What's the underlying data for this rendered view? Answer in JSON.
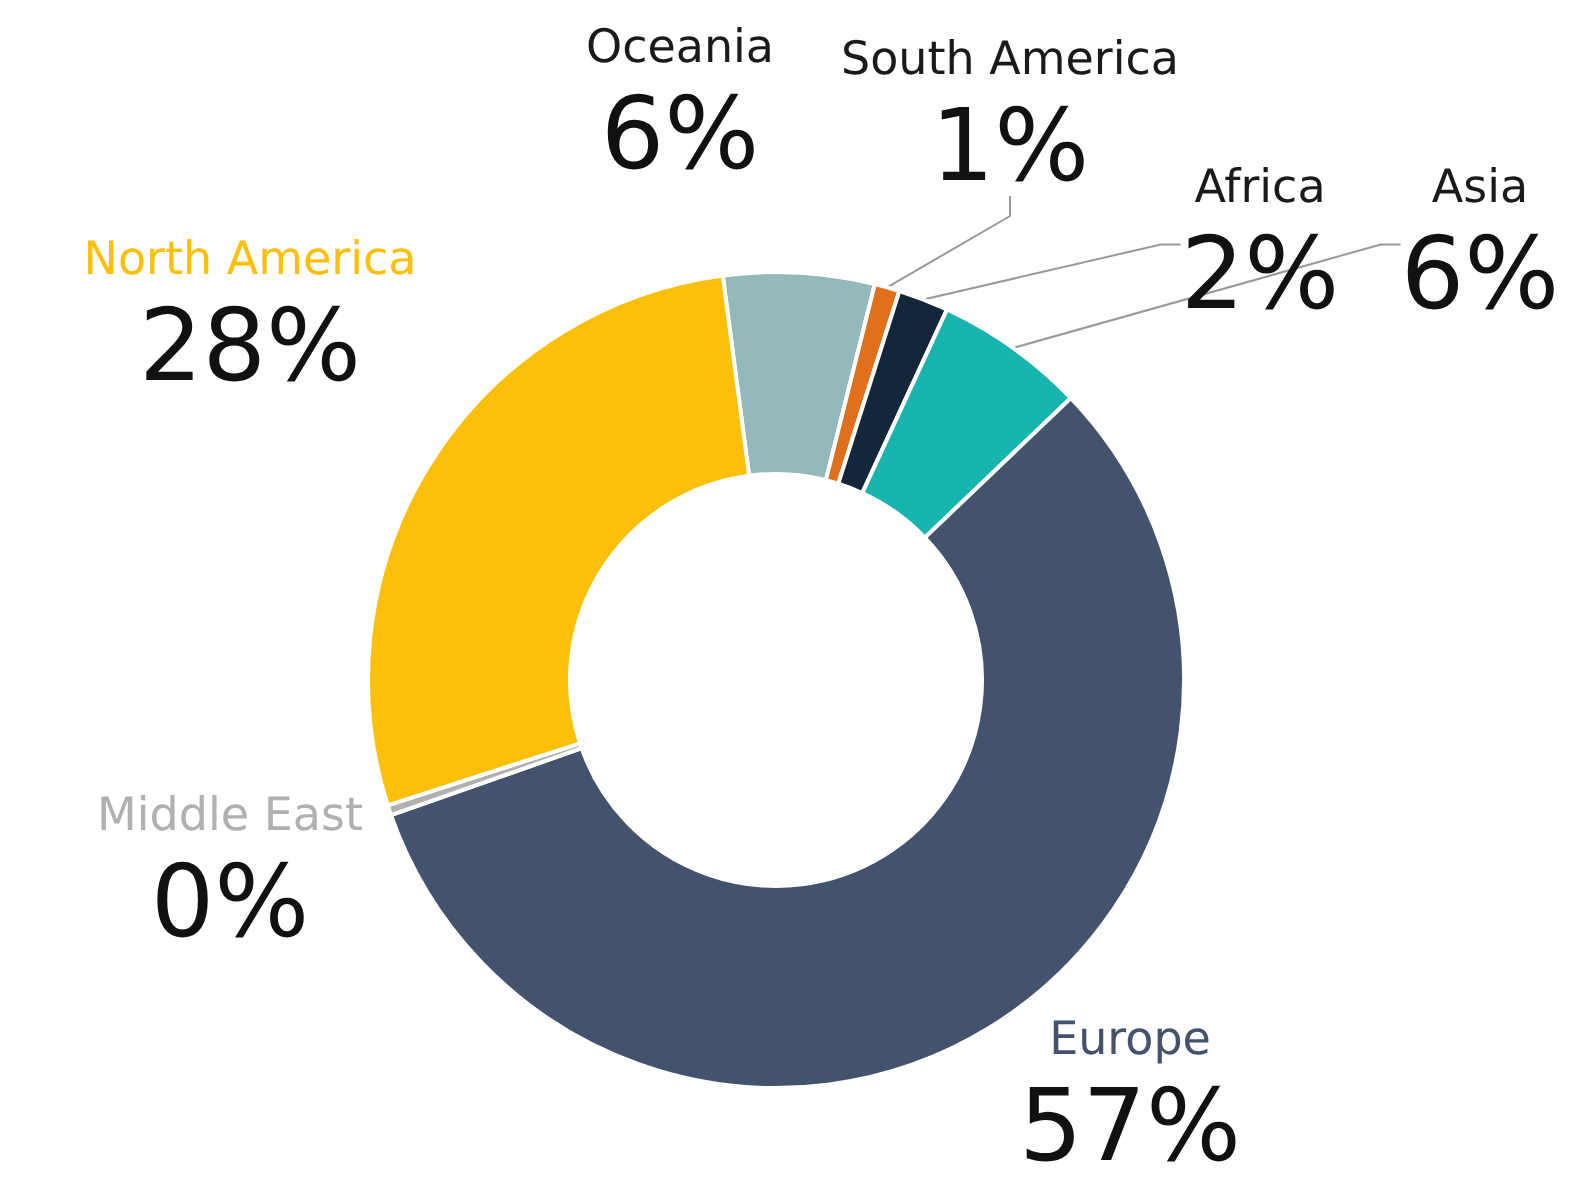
{
  "chart_data": {
    "type": "donut",
    "categories": [
      "Oceania",
      "South America",
      "Africa",
      "Asia",
      "Europe",
      "Middle East",
      "North America"
    ],
    "values": [
      6,
      1,
      2,
      6,
      57,
      0.4,
      28
    ],
    "value_labels": [
      "6%",
      "1%",
      "2%",
      "6%",
      "57%",
      "0%",
      "28%"
    ],
    "colors": [
      "#93b9bb",
      "#e0701c",
      "#14263a",
      "#17b5ad",
      "#43536e",
      "#b0b0b0",
      "#fcc00a"
    ],
    "legend": false
  }
}
